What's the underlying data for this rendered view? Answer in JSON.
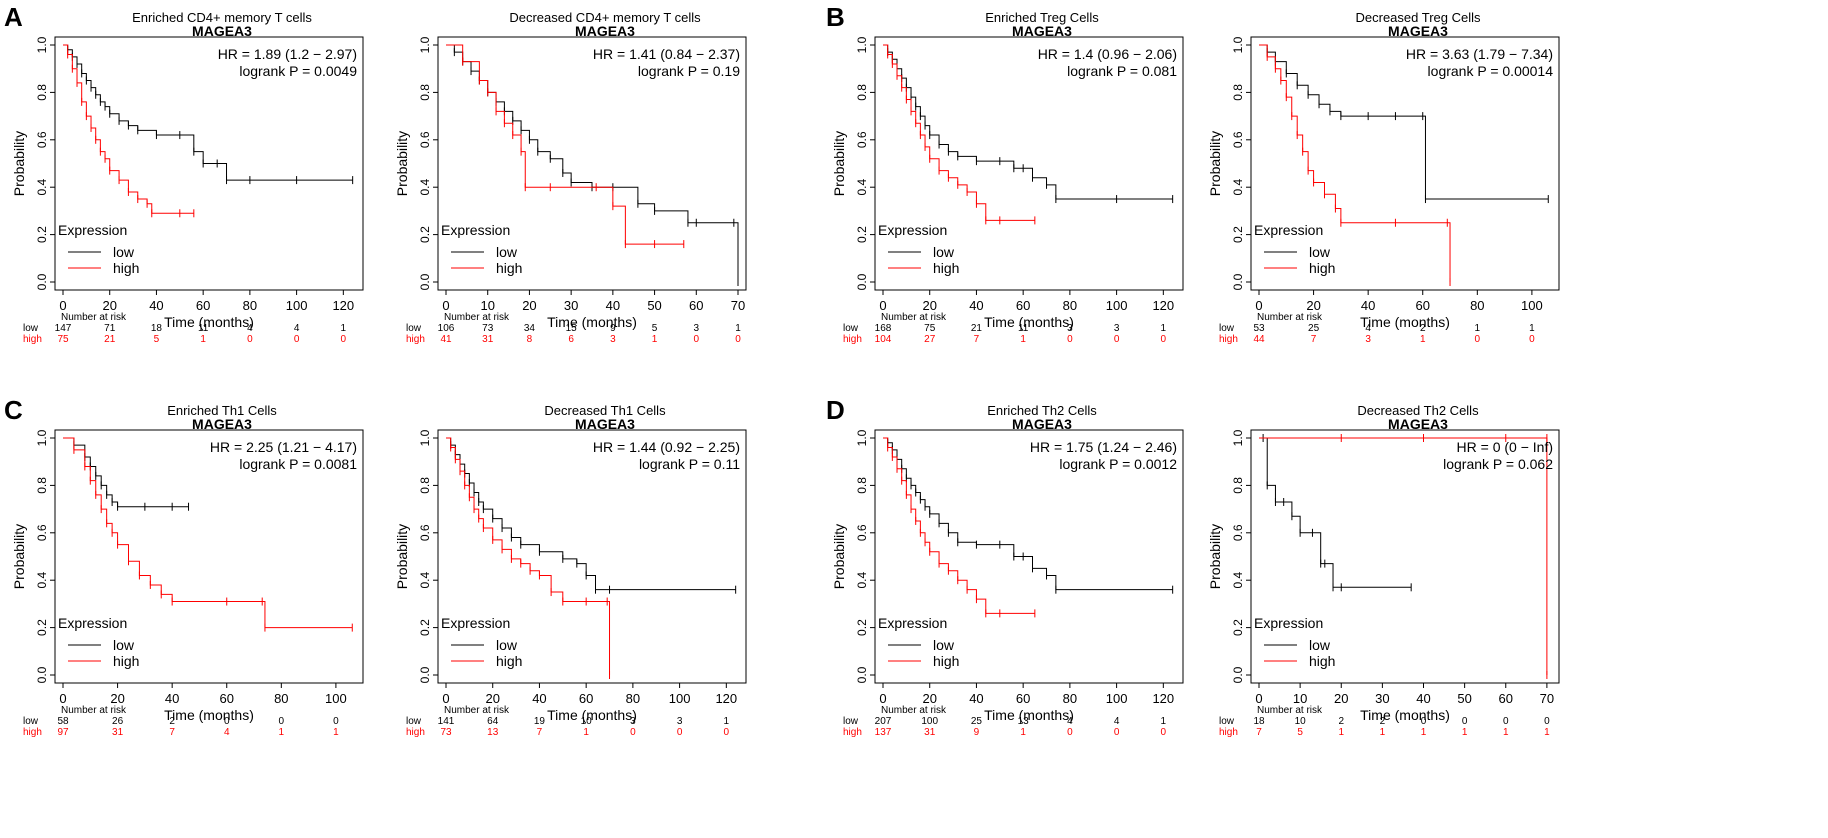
{
  "panel_letters": [
    "A",
    "B",
    "C",
    "D"
  ],
  "common": {
    "ylabel": "Probability",
    "xlabel": "Time (months)",
    "legend_title": "Expression",
    "legend_low": "low",
    "legend_high": "high",
    "nar_title": "Number at risk",
    "row_low": "low",
    "row_high": "high",
    "yticks": [
      "0.0",
      "0.2",
      "0.4",
      "0.6",
      "0.8",
      "1.0"
    ],
    "colors": {
      "low": "#000000",
      "high": "#ff0000"
    }
  },
  "chart_data": [
    {
      "type": "line",
      "panel": "A",
      "title": "Enriched CD4+ memory T cells",
      "subtitle": "MAGEA3",
      "hr_text": "HR = 1.89 (1.2 − 2.97)",
      "p_text": "logrank P = 0.0049",
      "xlabel": "Time (months)",
      "ylabel": "Probability",
      "xlim": [
        0,
        125
      ],
      "ylim": [
        0,
        1
      ],
      "xticks": [
        "0",
        "20",
        "40",
        "60",
        "80",
        "100",
        "120"
      ],
      "risk_times": [
        0,
        20,
        40,
        60,
        80,
        100,
        120
      ],
      "risk": {
        "low": [
          "147",
          "71",
          "18",
          "11",
          "4",
          "4",
          "1"
        ],
        "high": [
          "75",
          "21",
          "5",
          "1",
          "0",
          "0",
          "0"
        ]
      },
      "series": [
        {
          "name": "low",
          "x": [
            0,
            2,
            4,
            6,
            8,
            10,
            12,
            14,
            16,
            18,
            20,
            24,
            28,
            32,
            40,
            50,
            56,
            60,
            66,
            70,
            80,
            100,
            124
          ],
          "y": [
            1,
            0.98,
            0.95,
            0.92,
            0.88,
            0.85,
            0.82,
            0.79,
            0.76,
            0.74,
            0.71,
            0.68,
            0.66,
            0.64,
            0.62,
            0.62,
            0.55,
            0.5,
            0.5,
            0.43,
            0.43,
            0.43,
            0.43
          ]
        },
        {
          "name": "high",
          "x": [
            0,
            2,
            4,
            6,
            8,
            10,
            12,
            14,
            16,
            18,
            20,
            24,
            28,
            32,
            36,
            38,
            50,
            56
          ],
          "y": [
            1,
            0.96,
            0.9,
            0.84,
            0.76,
            0.7,
            0.65,
            0.6,
            0.55,
            0.52,
            0.47,
            0.43,
            0.38,
            0.35,
            0.33,
            0.29,
            0.29,
            0.29
          ]
        }
      ]
    },
    {
      "type": "line",
      "panel": "A2",
      "title": "Decreased CD4+ memory T cells",
      "subtitle": "MAGEA3",
      "hr_text": "HR = 1.41 (0.84 − 2.37)",
      "p_text": "logrank P = 0.19",
      "xlabel": "Time (months)",
      "ylabel": "Probability",
      "xlim": [
        0,
        70
      ],
      "ylim": [
        0,
        1
      ],
      "xticks": [
        "0",
        "10",
        "20",
        "30",
        "40",
        "50",
        "60",
        "70"
      ],
      "risk_times": [
        0,
        10,
        20,
        30,
        40,
        50,
        60,
        70
      ],
      "risk": {
        "low": [
          "106",
          "73",
          "34",
          "15",
          "9",
          "5",
          "3",
          "1"
        ],
        "high": [
          "41",
          "31",
          "8",
          "6",
          "3",
          "1",
          "0",
          "0"
        ]
      },
      "series": [
        {
          "name": "low",
          "x": [
            0,
            2,
            4,
            6,
            8,
            10,
            12,
            14,
            16,
            18,
            20,
            22,
            25,
            28,
            30,
            35,
            40,
            46,
            50,
            58,
            60,
            69,
            70
          ],
          "y": [
            1,
            0.97,
            0.93,
            0.89,
            0.85,
            0.8,
            0.76,
            0.72,
            0.68,
            0.64,
            0.6,
            0.55,
            0.52,
            0.46,
            0.42,
            0.4,
            0.4,
            0.33,
            0.3,
            0.25,
            0.25,
            0.25,
            0
          ]
        },
        {
          "name": "high",
          "x": [
            0,
            4,
            8,
            10,
            12,
            14,
            16,
            18,
            19,
            25,
            36,
            40,
            43,
            50,
            57
          ],
          "y": [
            1,
            0.93,
            0.85,
            0.8,
            0.72,
            0.67,
            0.62,
            0.55,
            0.4,
            0.4,
            0.4,
            0.32,
            0.16,
            0.16,
            0.16
          ]
        }
      ]
    },
    {
      "type": "line",
      "panel": "B",
      "title": "Enriched Treg Cells",
      "subtitle": "MAGEA3",
      "hr_text": "HR = 1.4 (0.96 − 2.06)",
      "p_text": "logrank P = 0.081",
      "xlabel": "Time (months)",
      "ylabel": "Probability",
      "xlim": [
        0,
        125
      ],
      "ylim": [
        0,
        1
      ],
      "xticks": [
        "0",
        "20",
        "40",
        "60",
        "80",
        "100",
        "120"
      ],
      "risk_times": [
        0,
        20,
        40,
        60,
        80,
        100,
        120
      ],
      "risk": {
        "low": [
          "168",
          "75",
          "21",
          "11",
          "3",
          "3",
          "1"
        ],
        "high": [
          "104",
          "27",
          "7",
          "1",
          "0",
          "0",
          "0"
        ]
      },
      "series": [
        {
          "name": "low",
          "x": [
            0,
            2,
            4,
            6,
            8,
            10,
            12,
            14,
            16,
            18,
            20,
            24,
            28,
            32,
            40,
            50,
            56,
            60,
            64,
            70,
            74,
            100,
            124
          ],
          "y": [
            1,
            0.97,
            0.94,
            0.9,
            0.86,
            0.82,
            0.78,
            0.74,
            0.7,
            0.66,
            0.62,
            0.58,
            0.55,
            0.53,
            0.51,
            0.51,
            0.48,
            0.48,
            0.44,
            0.41,
            0.35,
            0.35,
            0.35
          ]
        },
        {
          "name": "high",
          "x": [
            0,
            2,
            4,
            6,
            8,
            10,
            12,
            14,
            16,
            18,
            20,
            24,
            28,
            32,
            36,
            40,
            44,
            50,
            65
          ],
          "y": [
            1,
            0.96,
            0.92,
            0.87,
            0.82,
            0.77,
            0.72,
            0.67,
            0.62,
            0.57,
            0.52,
            0.47,
            0.44,
            0.41,
            0.38,
            0.33,
            0.26,
            0.26,
            0.26
          ]
        }
      ]
    },
    {
      "type": "line",
      "panel": "B2",
      "title": "Decreased Treg Cells",
      "subtitle": "MAGEA3",
      "hr_text": "HR = 3.63 (1.79 − 7.34)",
      "p_text": "logrank P = 0.00014",
      "xlabel": "Time (months)",
      "ylabel": "Probability",
      "xlim": [
        0,
        107
      ],
      "ylim": [
        0,
        1
      ],
      "xticks": [
        "0",
        "20",
        "40",
        "60",
        "80",
        "100"
      ],
      "risk_times": [
        0,
        20,
        40,
        60,
        80,
        100
      ],
      "risk": {
        "low": [
          "53",
          "25",
          "4",
          "2",
          "1",
          "1"
        ],
        "high": [
          "44",
          "7",
          "3",
          "1",
          "0",
          "0"
        ]
      },
      "series": [
        {
          "name": "low",
          "x": [
            0,
            3,
            6,
            10,
            14,
            18,
            22,
            26,
            30,
            40,
            50,
            60,
            61,
            106
          ],
          "y": [
            1,
            0.97,
            0.93,
            0.88,
            0.83,
            0.79,
            0.75,
            0.72,
            0.7,
            0.7,
            0.7,
            0.7,
            0.35,
            0.35
          ]
        },
        {
          "name": "high",
          "x": [
            0,
            3,
            6,
            8,
            10,
            12,
            14,
            16,
            18,
            20,
            24,
            28,
            30,
            50,
            69,
            70
          ],
          "y": [
            1,
            0.95,
            0.9,
            0.85,
            0.78,
            0.7,
            0.62,
            0.55,
            0.47,
            0.42,
            0.37,
            0.31,
            0.25,
            0.25,
            0.25,
            0
          ]
        }
      ]
    },
    {
      "type": "line",
      "panel": "C",
      "title": "Enriched Th1 Cells",
      "subtitle": "MAGEA3",
      "hr_text": "HR = 2.25 (1.21 − 4.17)",
      "p_text": "logrank P = 0.0081",
      "xlabel": "Time (months)",
      "ylabel": "Probability",
      "xlim": [
        0,
        107
      ],
      "ylim": [
        0,
        1
      ],
      "xticks": [
        "0",
        "20",
        "40",
        "60",
        "80",
        "100"
      ],
      "risk_times": [
        0,
        20,
        40,
        60,
        80,
        100
      ],
      "risk": {
        "low": [
          "58",
          "26",
          "2",
          "0",
          "0",
          "0"
        ],
        "high": [
          "97",
          "31",
          "7",
          "4",
          "1",
          "1"
        ]
      },
      "series": [
        {
          "name": "low",
          "x": [
            0,
            4,
            8,
            10,
            12,
            14,
            16,
            18,
            20,
            30,
            40,
            46
          ],
          "y": [
            1,
            0.97,
            0.92,
            0.88,
            0.84,
            0.8,
            0.76,
            0.73,
            0.71,
            0.71,
            0.71,
            0.71
          ]
        },
        {
          "name": "high",
          "x": [
            0,
            4,
            8,
            10,
            12,
            14,
            16,
            18,
            20,
            24,
            28,
            32,
            36,
            40,
            60,
            73,
            74,
            106
          ],
          "y": [
            1,
            0.95,
            0.88,
            0.82,
            0.76,
            0.7,
            0.64,
            0.6,
            0.55,
            0.48,
            0.42,
            0.38,
            0.34,
            0.31,
            0.31,
            0.31,
            0.2,
            0.2
          ]
        }
      ]
    },
    {
      "type": "line",
      "panel": "C2",
      "title": "Decreased Th1 Cells",
      "subtitle": "MAGEA3",
      "hr_text": "HR = 1.44 (0.92 − 2.25)",
      "p_text": "logrank P = 0.11",
      "xlabel": "Time (months)",
      "ylabel": "Probability",
      "xlim": [
        0,
        125
      ],
      "ylim": [
        0,
        1
      ],
      "xticks": [
        "0",
        "20",
        "40",
        "60",
        "80",
        "100",
        "120"
      ],
      "risk_times": [
        0,
        20,
        40,
        60,
        80,
        100,
        120
      ],
      "risk": {
        "low": [
          "141",
          "64",
          "19",
          "10",
          "3",
          "3",
          "1"
        ],
        "high": [
          "73",
          "13",
          "7",
          "1",
          "0",
          "0",
          "0"
        ]
      },
      "series": [
        {
          "name": "low",
          "x": [
            0,
            2,
            4,
            6,
            8,
            10,
            12,
            14,
            16,
            20,
            24,
            28,
            32,
            40,
            50,
            56,
            60,
            64,
            70,
            124
          ],
          "y": [
            1,
            0.97,
            0.93,
            0.89,
            0.85,
            0.81,
            0.77,
            0.73,
            0.7,
            0.66,
            0.62,
            0.58,
            0.55,
            0.52,
            0.49,
            0.47,
            0.42,
            0.36,
            0.36,
            0.36
          ]
        },
        {
          "name": "high",
          "x": [
            0,
            2,
            4,
            6,
            8,
            10,
            12,
            14,
            16,
            20,
            24,
            28,
            32,
            36,
            40,
            45,
            50,
            60,
            69,
            70
          ],
          "y": [
            1,
            0.96,
            0.91,
            0.86,
            0.8,
            0.75,
            0.7,
            0.66,
            0.62,
            0.57,
            0.53,
            0.49,
            0.47,
            0.44,
            0.42,
            0.35,
            0.31,
            0.31,
            0.31,
            0
          ]
        }
      ]
    },
    {
      "type": "line",
      "panel": "D",
      "title": "Enriched Th2 Cells",
      "subtitle": "MAGEA3",
      "hr_text": "HR = 1.75 (1.24 − 2.46)",
      "p_text": "logrank P = 0.0012",
      "xlabel": "Time (months)",
      "ylabel": "Probability",
      "xlim": [
        0,
        125
      ],
      "ylim": [
        0,
        1
      ],
      "xticks": [
        "0",
        "20",
        "40",
        "60",
        "80",
        "100",
        "120"
      ],
      "risk_times": [
        0,
        20,
        40,
        60,
        80,
        100,
        120
      ],
      "risk": {
        "low": [
          "207",
          "100",
          "25",
          "13",
          "4",
          "4",
          "1"
        ],
        "high": [
          "137",
          "31",
          "9",
          "1",
          "0",
          "0",
          "0"
        ]
      },
      "series": [
        {
          "name": "low",
          "x": [
            0,
            2,
            4,
            6,
            8,
            10,
            12,
            14,
            16,
            18,
            20,
            24,
            28,
            32,
            40,
            50,
            56,
            60,
            64,
            70,
            74,
            124
          ],
          "y": [
            1,
            0.98,
            0.95,
            0.91,
            0.87,
            0.83,
            0.8,
            0.77,
            0.74,
            0.71,
            0.68,
            0.64,
            0.6,
            0.56,
            0.55,
            0.55,
            0.5,
            0.5,
            0.45,
            0.42,
            0.36,
            0.36
          ]
        },
        {
          "name": "high",
          "x": [
            0,
            2,
            4,
            6,
            8,
            10,
            12,
            14,
            16,
            18,
            20,
            24,
            28,
            32,
            36,
            40,
            44,
            50,
            65
          ],
          "y": [
            1,
            0.96,
            0.92,
            0.87,
            0.82,
            0.76,
            0.7,
            0.65,
            0.6,
            0.56,
            0.52,
            0.47,
            0.44,
            0.4,
            0.36,
            0.32,
            0.26,
            0.26,
            0.26
          ]
        }
      ]
    },
    {
      "type": "line",
      "panel": "D2",
      "title": "Decreased Th2 Cells",
      "subtitle": "MAGEA3",
      "hr_text": "HR = 0 (0 − Inf)",
      "p_text": "logrank P = 0.062",
      "xlabel": "Time (months)",
      "ylabel": "Probability",
      "xlim": [
        0,
        71
      ],
      "ylim": [
        0,
        1
      ],
      "xticks": [
        "0",
        "10",
        "20",
        "30",
        "40",
        "50",
        "60",
        "70"
      ],
      "risk_times": [
        0,
        10,
        20,
        30,
        40,
        50,
        60,
        70
      ],
      "risk": {
        "low": [
          "18",
          "10",
          "2",
          "2",
          "0",
          "0",
          "0",
          "0"
        ],
        "high": [
          "7",
          "5",
          "1",
          "1",
          "1",
          "1",
          "1",
          "1"
        ]
      },
      "series": [
        {
          "name": "low",
          "x": [
            0,
            1,
            2,
            4,
            6,
            8,
            10,
            13,
            15,
            16,
            18,
            20,
            37
          ],
          "y": [
            1,
            1,
            0.8,
            0.73,
            0.73,
            0.67,
            0.6,
            0.6,
            0.47,
            0.47,
            0.37,
            0.37,
            0.37
          ]
        },
        {
          "name": "high",
          "x": [
            0,
            20,
            40,
            60,
            70,
            70
          ],
          "y": [
            1,
            1,
            1,
            1,
            1,
            0
          ]
        }
      ]
    }
  ]
}
